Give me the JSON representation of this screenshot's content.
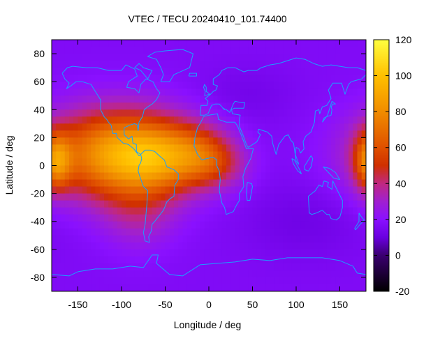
{
  "chart_data": {
    "type": "heatmap",
    "title": "VTEC / TECU 20240410_101.74400",
    "xlabel": "Longitude / deg",
    "ylabel": "Latitude / deg",
    "xlim": [
      -180,
      180
    ],
    "ylim": [
      -90,
      90
    ],
    "x_ticks": [
      -150,
      -100,
      -50,
      0,
      50,
      100,
      150
    ],
    "y_ticks": [
      -80,
      -60,
      -40,
      -20,
      0,
      20,
      40,
      60,
      80
    ],
    "colorbar": {
      "range": [
        -20,
        120
      ],
      "ticks": [
        -20,
        0,
        20,
        40,
        60,
        80,
        100,
        120
      ],
      "palette": [
        {
          "v": -20,
          "color": "#000000"
        },
        {
          "v": 0,
          "color": "#3a0070"
        },
        {
          "v": 10,
          "color": "#6a00e0"
        },
        {
          "v": 20,
          "color": "#8a10ff"
        },
        {
          "v": 30,
          "color": "#a020d0"
        },
        {
          "v": 40,
          "color": "#c02880"
        },
        {
          "v": 50,
          "color": "#d03000"
        },
        {
          "v": 60,
          "color": "#e05000"
        },
        {
          "v": 80,
          "color": "#f08c00"
        },
        {
          "v": 100,
          "color": "#ffc000"
        },
        {
          "v": 120,
          "color": "#ffff40"
        }
      ]
    },
    "background_vtec": 17,
    "vtec_regions": [
      {
        "lon": -105,
        "lat": 8,
        "slon": 55,
        "slat": 22,
        "amp": 68
      },
      {
        "lon": -55,
        "lat": 5,
        "slon": 35,
        "slat": 17,
        "amp": 32
      },
      {
        "lon": -10,
        "lat": 10,
        "slon": 26,
        "slat": 14,
        "amp": 22
      },
      {
        "lon": 10,
        "lat": 0,
        "slon": 25,
        "slat": 12,
        "amp": 18
      },
      {
        "lon": 185,
        "lat": 3,
        "slon": 12,
        "slat": 14,
        "amp": 45
      },
      {
        "lon": -80,
        "lat": -35,
        "slon": 30,
        "slat": 18,
        "amp": 14
      },
      {
        "lon": 110,
        "lat": -40,
        "slon": 50,
        "slat": 20,
        "amp": -5
      },
      {
        "lon": 40,
        "lat": 50,
        "slon": 40,
        "slat": 15,
        "amp": -4
      }
    ],
    "coastlines": [
      [
        [
          -168,
          66
        ],
        [
          -162,
          70
        ],
        [
          -156,
          71
        ],
        [
          -140,
          70
        ],
        [
          -128,
          70
        ],
        [
          -115,
          68
        ],
        [
          -100,
          68
        ],
        [
          -95,
          72
        ],
        [
          -85,
          69
        ],
        [
          -82,
          64
        ],
        [
          -92,
          60
        ],
        [
          -94,
          56
        ],
        [
          -85,
          55
        ],
        [
          -80,
          52
        ],
        [
          -78,
          58
        ],
        [
          -72,
          62
        ],
        [
          -64,
          60
        ],
        [
          -60,
          55
        ],
        [
          -56,
          52
        ],
        [
          -60,
          47
        ],
        [
          -65,
          44
        ],
        [
          -70,
          42
        ],
        [
          -74,
          40
        ],
        [
          -76,
          35
        ],
        [
          -80,
          31
        ],
        [
          -81,
          25
        ],
        [
          -82,
          29
        ],
        [
          -85,
          30
        ],
        [
          -90,
          29
        ],
        [
          -97,
          27
        ],
        [
          -97,
          22
        ],
        [
          -92,
          19
        ],
        [
          -88,
          21
        ],
        [
          -87,
          16
        ],
        [
          -83,
          15
        ],
        [
          -83,
          10
        ],
        [
          -78,
          8
        ],
        [
          -80,
          7
        ],
        [
          -86,
          12
        ],
        [
          -92,
          15
        ],
        [
          -98,
          16
        ],
        [
          -105,
          20
        ],
        [
          -106,
          23
        ],
        [
          -110,
          23
        ],
        [
          -112,
          29
        ],
        [
          -115,
          31
        ],
        [
          -117,
          33
        ],
        [
          -120,
          35
        ],
        [
          -124,
          40
        ],
        [
          -124,
          47
        ],
        [
          -128,
          51
        ],
        [
          -135,
          58
        ],
        [
          -145,
          60
        ],
        [
          -152,
          60
        ],
        [
          -158,
          57
        ],
        [
          -163,
          55
        ],
        [
          -160,
          59
        ],
        [
          -165,
          62
        ],
        [
          -168,
          66
        ]
      ],
      [
        [
          -78,
          8
        ],
        [
          -73,
          11
        ],
        [
          -67,
          11
        ],
        [
          -62,
          10
        ],
        [
          -55,
          6
        ],
        [
          -51,
          4
        ],
        [
          -48,
          -1
        ],
        [
          -40,
          -3
        ],
        [
          -35,
          -6
        ],
        [
          -35,
          -10
        ],
        [
          -39,
          -14
        ],
        [
          -40,
          -22
        ],
        [
          -45,
          -24
        ],
        [
          -48,
          -26
        ],
        [
          -52,
          -32
        ],
        [
          -57,
          -36
        ],
        [
          -62,
          -40
        ],
        [
          -65,
          -42
        ],
        [
          -66,
          -47
        ],
        [
          -69,
          -51
        ],
        [
          -68,
          -55
        ],
        [
          -73,
          -54
        ],
        [
          -75,
          -48
        ],
        [
          -73,
          -42
        ],
        [
          -72,
          -35
        ],
        [
          -71,
          -28
        ],
        [
          -70,
          -18
        ],
        [
          -75,
          -15
        ],
        [
          -79,
          -8
        ],
        [
          -81,
          -4
        ],
        [
          -80,
          0
        ],
        [
          -78,
          2
        ],
        [
          -77,
          5
        ],
        [
          -78,
          8
        ]
      ],
      [
        [
          -17,
          14
        ],
        [
          -16,
          20
        ],
        [
          -13,
          27
        ],
        [
          -10,
          30
        ],
        [
          -6,
          35
        ],
        [
          0,
          36
        ],
        [
          10,
          37
        ],
        [
          11,
          33
        ],
        [
          20,
          31
        ],
        [
          30,
          31
        ],
        [
          33,
          28
        ],
        [
          37,
          22
        ],
        [
          43,
          12
        ],
        [
          51,
          12
        ],
        [
          48,
          5
        ],
        [
          42,
          -2
        ],
        [
          39,
          -8
        ],
        [
          40,
          -15
        ],
        [
          35,
          -20
        ],
        [
          35,
          -25
        ],
        [
          32,
          -28
        ],
        [
          28,
          -33
        ],
        [
          20,
          -35
        ],
        [
          18,
          -30
        ],
        [
          15,
          -27
        ],
        [
          12,
          -18
        ],
        [
          13,
          -10
        ],
        [
          12,
          -4
        ],
        [
          9,
          0
        ],
        [
          9,
          4
        ],
        [
          5,
          6
        ],
        [
          -2,
          5
        ],
        [
          -8,
          4
        ],
        [
          -13,
          8
        ],
        [
          -17,
          14
        ]
      ],
      [
        [
          -10,
          36
        ],
        [
          -9,
          43
        ],
        [
          -2,
          43
        ],
        [
          -1,
          46
        ],
        [
          -4,
          48
        ],
        [
          2,
          51
        ],
        [
          5,
          53
        ],
        [
          8,
          54
        ],
        [
          10,
          57
        ],
        [
          5,
          58
        ],
        [
          5,
          62
        ],
        [
          12,
          65
        ],
        [
          15,
          68
        ],
        [
          22,
          70
        ],
        [
          30,
          70
        ],
        [
          40,
          67
        ],
        [
          45,
          68
        ],
        [
          55,
          68
        ],
        [
          60,
          70
        ],
        [
          70,
          72
        ],
        [
          80,
          73
        ],
        [
          90,
          75
        ],
        [
          100,
          77
        ],
        [
          110,
          76
        ],
        [
          120,
          73
        ],
        [
          130,
          71
        ],
        [
          140,
          72
        ],
        [
          150,
          71
        ],
        [
          160,
          70
        ],
        [
          170,
          70
        ],
        [
          180,
          68
        ],
        [
          180,
          65
        ],
        [
          175,
          62
        ],
        [
          163,
          60
        ],
        [
          160,
          58
        ],
        [
          156,
          51
        ],
        [
          152,
          59
        ],
        [
          142,
          59
        ],
        [
          137,
          54
        ],
        [
          140,
          48
        ],
        [
          135,
          43
        ],
        [
          130,
          42
        ],
        [
          127,
          37
        ],
        [
          126,
          40
        ],
        [
          122,
          39
        ],
        [
          121,
          31
        ],
        [
          117,
          24
        ],
        [
          111,
          21
        ],
        [
          108,
          17
        ],
        [
          109,
          12
        ],
        [
          105,
          9
        ],
        [
          103,
          12
        ],
        [
          100,
          13
        ],
        [
          99,
          8
        ],
        [
          103,
          1
        ],
        [
          100,
          3
        ],
        [
          97,
          16
        ],
        [
          94,
          18
        ],
        [
          91,
          22
        ],
        [
          87,
          21
        ],
        [
          80,
          15
        ],
        [
          77,
          8
        ],
        [
          73,
          16
        ],
        [
          72,
          21
        ],
        [
          67,
          24
        ],
        [
          62,
          25
        ],
        [
          57,
          26
        ],
        [
          56,
          24
        ],
        [
          59,
          22
        ],
        [
          55,
          17
        ],
        [
          45,
          13
        ],
        [
          43,
          15
        ],
        [
          39,
          22
        ],
        [
          35,
          28
        ],
        [
          35,
          33
        ],
        [
          36,
          36
        ],
        [
          27,
          37
        ],
        [
          26,
          40
        ],
        [
          29,
          41
        ],
        [
          40,
          41
        ],
        [
          41,
          45
        ],
        [
          37,
          45
        ],
        [
          30,
          46
        ],
        [
          28,
          44
        ],
        [
          24,
          38
        ],
        [
          20,
          40
        ],
        [
          16,
          41
        ],
        [
          18,
          40
        ],
        [
          12,
          44
        ],
        [
          7,
          44
        ],
        [
          3,
          43
        ],
        [
          -1,
          37
        ],
        [
          -5,
          36
        ],
        [
          -10,
          36
        ]
      ],
      [
        [
          114,
          -22
        ],
        [
          115,
          -34
        ],
        [
          118,
          -35
        ],
        [
          123,
          -34
        ],
        [
          130,
          -32
        ],
        [
          135,
          -35
        ],
        [
          138,
          -35
        ],
        [
          140,
          -38
        ],
        [
          146,
          -39
        ],
        [
          150,
          -37
        ],
        [
          153,
          -30
        ],
        [
          153,
          -25
        ],
        [
          149,
          -20
        ],
        [
          145,
          -15
        ],
        [
          142,
          -11
        ],
        [
          141,
          -17
        ],
        [
          136,
          -15
        ],
        [
          137,
          -12
        ],
        [
          132,
          -11
        ],
        [
          130,
          -15
        ],
        [
          126,
          -14
        ],
        [
          122,
          -18
        ],
        [
          114,
          -22
        ]
      ],
      [
        [
          -55,
          60
        ],
        [
          -45,
          60
        ],
        [
          -40,
          65
        ],
        [
          -22,
          70
        ],
        [
          -20,
          75
        ],
        [
          -18,
          80
        ],
        [
          -30,
          83
        ],
        [
          -50,
          82
        ],
        [
          -62,
          81
        ],
        [
          -70,
          78
        ],
        [
          -60,
          76
        ],
        [
          -55,
          70
        ],
        [
          -52,
          65
        ],
        [
          -55,
          60
        ]
      ],
      [
        [
          -180,
          -78
        ],
        [
          -160,
          -79
        ],
        [
          -150,
          -76
        ],
        [
          -130,
          -74
        ],
        [
          -110,
          -74
        ],
        [
          -90,
          -72
        ],
        [
          -75,
          -73
        ],
        [
          -65,
          -64
        ],
        [
          -58,
          -64
        ],
        [
          -60,
          -70
        ],
        [
          -45,
          -78
        ],
        [
          -30,
          -79
        ],
        [
          -10,
          -71
        ],
        [
          10,
          -70
        ],
        [
          30,
          -69
        ],
        [
          50,
          -67
        ],
        [
          70,
          -68
        ],
        [
          90,
          -66
        ],
        [
          110,
          -66
        ],
        [
          130,
          -66
        ],
        [
          150,
          -68
        ],
        [
          165,
          -72
        ],
        [
          170,
          -77
        ],
        [
          180,
          -78
        ]
      ],
      [
        [
          -5,
          50
        ],
        [
          1,
          51
        ],
        [
          -3,
          53
        ],
        [
          -3,
          56
        ],
        [
          -5,
          58
        ],
        [
          -6,
          56
        ],
        [
          -5,
          54
        ],
        [
          -4,
          53
        ],
        [
          -5,
          50
        ]
      ],
      [
        [
          130,
          31
        ],
        [
          132,
          34
        ],
        [
          135,
          35
        ],
        [
          140,
          36
        ],
        [
          141,
          40
        ],
        [
          140,
          42
        ],
        [
          142,
          44
        ],
        [
          145,
          44
        ],
        [
          141,
          46
        ],
        [
          136,
          36
        ],
        [
          130,
          31
        ]
      ],
      [
        [
          44,
          -12
        ],
        [
          49,
          -13
        ],
        [
          50,
          -15
        ],
        [
          47,
          -25
        ],
        [
          44,
          -25
        ],
        [
          43,
          -20
        ],
        [
          44,
          -12
        ]
      ],
      [
        [
          95,
          5
        ],
        [
          98,
          4
        ],
        [
          104,
          -3
        ],
        [
          106,
          -6
        ],
        [
          102,
          -4
        ],
        [
          97,
          1
        ],
        [
          95,
          5
        ]
      ],
      [
        [
          109,
          -1
        ],
        [
          117,
          7
        ],
        [
          119,
          5
        ],
        [
          117,
          -1
        ],
        [
          114,
          -4
        ],
        [
          110,
          -3
        ],
        [
          109,
          -1
        ]
      ],
      [
        [
          131,
          -1
        ],
        [
          138,
          -2
        ],
        [
          145,
          -5
        ],
        [
          150,
          -10
        ],
        [
          143,
          -9
        ],
        [
          137,
          -5
        ],
        [
          131,
          -1
        ]
      ],
      [
        [
          172,
          -34
        ],
        [
          175,
          -37
        ],
        [
          178,
          -39
        ],
        [
          175,
          -41
        ],
        [
          172,
          -43
        ],
        [
          168,
          -46
        ],
        [
          167,
          -45
        ],
        [
          172,
          -40
        ],
        [
          172,
          -34
        ]
      ],
      [
        [
          -80,
          73
        ],
        [
          -75,
          70
        ],
        [
          -65,
          68
        ],
        [
          -70,
          62
        ],
        [
          -78,
          68
        ],
        [
          -85,
          70
        ],
        [
          -80,
          73
        ]
      ],
      [
        [
          -23,
          64
        ],
        [
          -14,
          64
        ],
        [
          -14,
          66
        ],
        [
          -22,
          66
        ],
        [
          -23,
          64
        ]
      ]
    ]
  }
}
